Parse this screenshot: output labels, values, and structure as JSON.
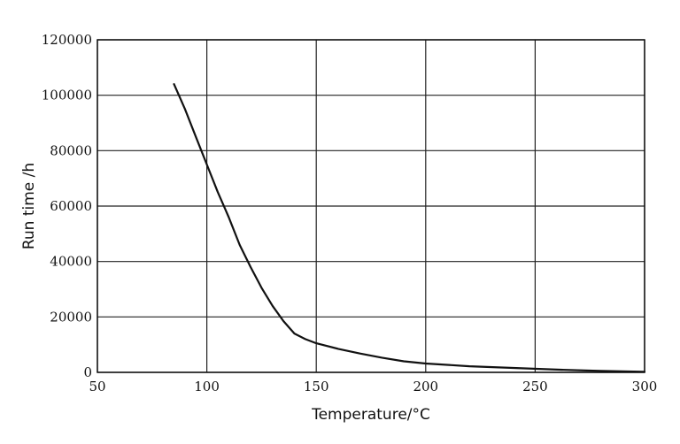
{
  "chart_data": {
    "type": "line",
    "xlabel": "Temperature/°C",
    "ylabel": "Run time /h",
    "xlim": [
      50,
      300
    ],
    "ylim": [
      0,
      120000
    ],
    "x_ticks": [
      50,
      100,
      150,
      200,
      250,
      300
    ],
    "y_ticks": [
      0,
      20000,
      40000,
      60000,
      80000,
      100000,
      120000
    ],
    "grid": true,
    "series": [
      {
        "color": "#111111",
        "x": [
          85,
          90,
          95,
          100,
          105,
          110,
          115,
          120,
          125,
          130,
          135,
          140,
          145,
          150,
          160,
          170,
          180,
          190,
          200,
          220,
          240,
          260,
          280,
          300
        ],
        "y": [
          104000,
          95000,
          85000,
          75000,
          65000,
          56000,
          46000,
          38000,
          30500,
          24000,
          18500,
          14000,
          12000,
          10500,
          8500,
          6800,
          5300,
          4000,
          3200,
          2200,
          1600,
          1000,
          500,
          200
        ]
      }
    ]
  }
}
